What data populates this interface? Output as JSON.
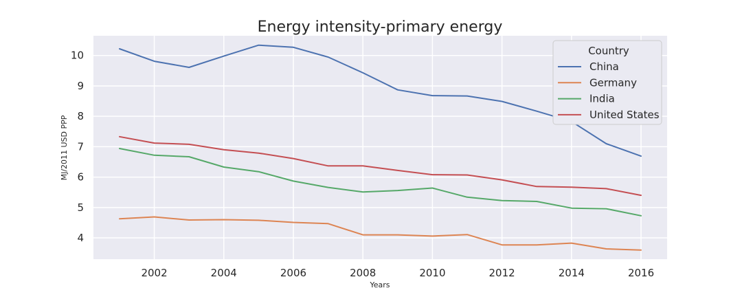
{
  "chart_data": {
    "type": "line",
    "title": "Energy intensity-primary energy",
    "xlabel": "Years",
    "ylabel": "MJ/2011 USD PPP",
    "x": [
      2001,
      2002,
      2003,
      2004,
      2005,
      2006,
      2007,
      2008,
      2009,
      2010,
      2011,
      2012,
      2013,
      2014,
      2015,
      2016
    ],
    "xlim": [
      2000.25,
      2016.75
    ],
    "ylim": [
      3.3,
      10.65
    ],
    "xticks": [
      2002,
      2004,
      2006,
      2008,
      2010,
      2012,
      2014,
      2016
    ],
    "yticks": [
      4,
      5,
      6,
      7,
      8,
      9,
      10
    ],
    "grid": true,
    "legend": {
      "title": "Country",
      "position": "top-right"
    },
    "series": [
      {
        "name": "China",
        "color": "#4c72b0",
        "values": [
          10.22,
          9.81,
          9.61,
          9.98,
          10.34,
          10.27,
          9.95,
          9.43,
          8.87,
          8.68,
          8.67,
          8.49,
          8.17,
          7.83,
          7.1,
          6.69
        ]
      },
      {
        "name": "Germany",
        "color": "#dd8452",
        "values": [
          4.63,
          4.69,
          4.59,
          4.6,
          4.58,
          4.51,
          4.47,
          4.1,
          4.1,
          4.06,
          4.11,
          3.77,
          3.77,
          3.83,
          3.64,
          3.6
        ]
      },
      {
        "name": "India",
        "color": "#55a868",
        "values": [
          6.94,
          6.72,
          6.67,
          6.33,
          6.18,
          5.87,
          5.66,
          5.51,
          5.56,
          5.64,
          5.34,
          5.23,
          5.2,
          4.98,
          4.96,
          4.73
        ]
      },
      {
        "name": "United States",
        "color": "#c44e52",
        "values": [
          7.33,
          7.12,
          7.08,
          6.9,
          6.79,
          6.61,
          6.37,
          6.37,
          6.22,
          6.08,
          6.07,
          5.91,
          5.69,
          5.67,
          5.62,
          5.4
        ]
      }
    ]
  }
}
